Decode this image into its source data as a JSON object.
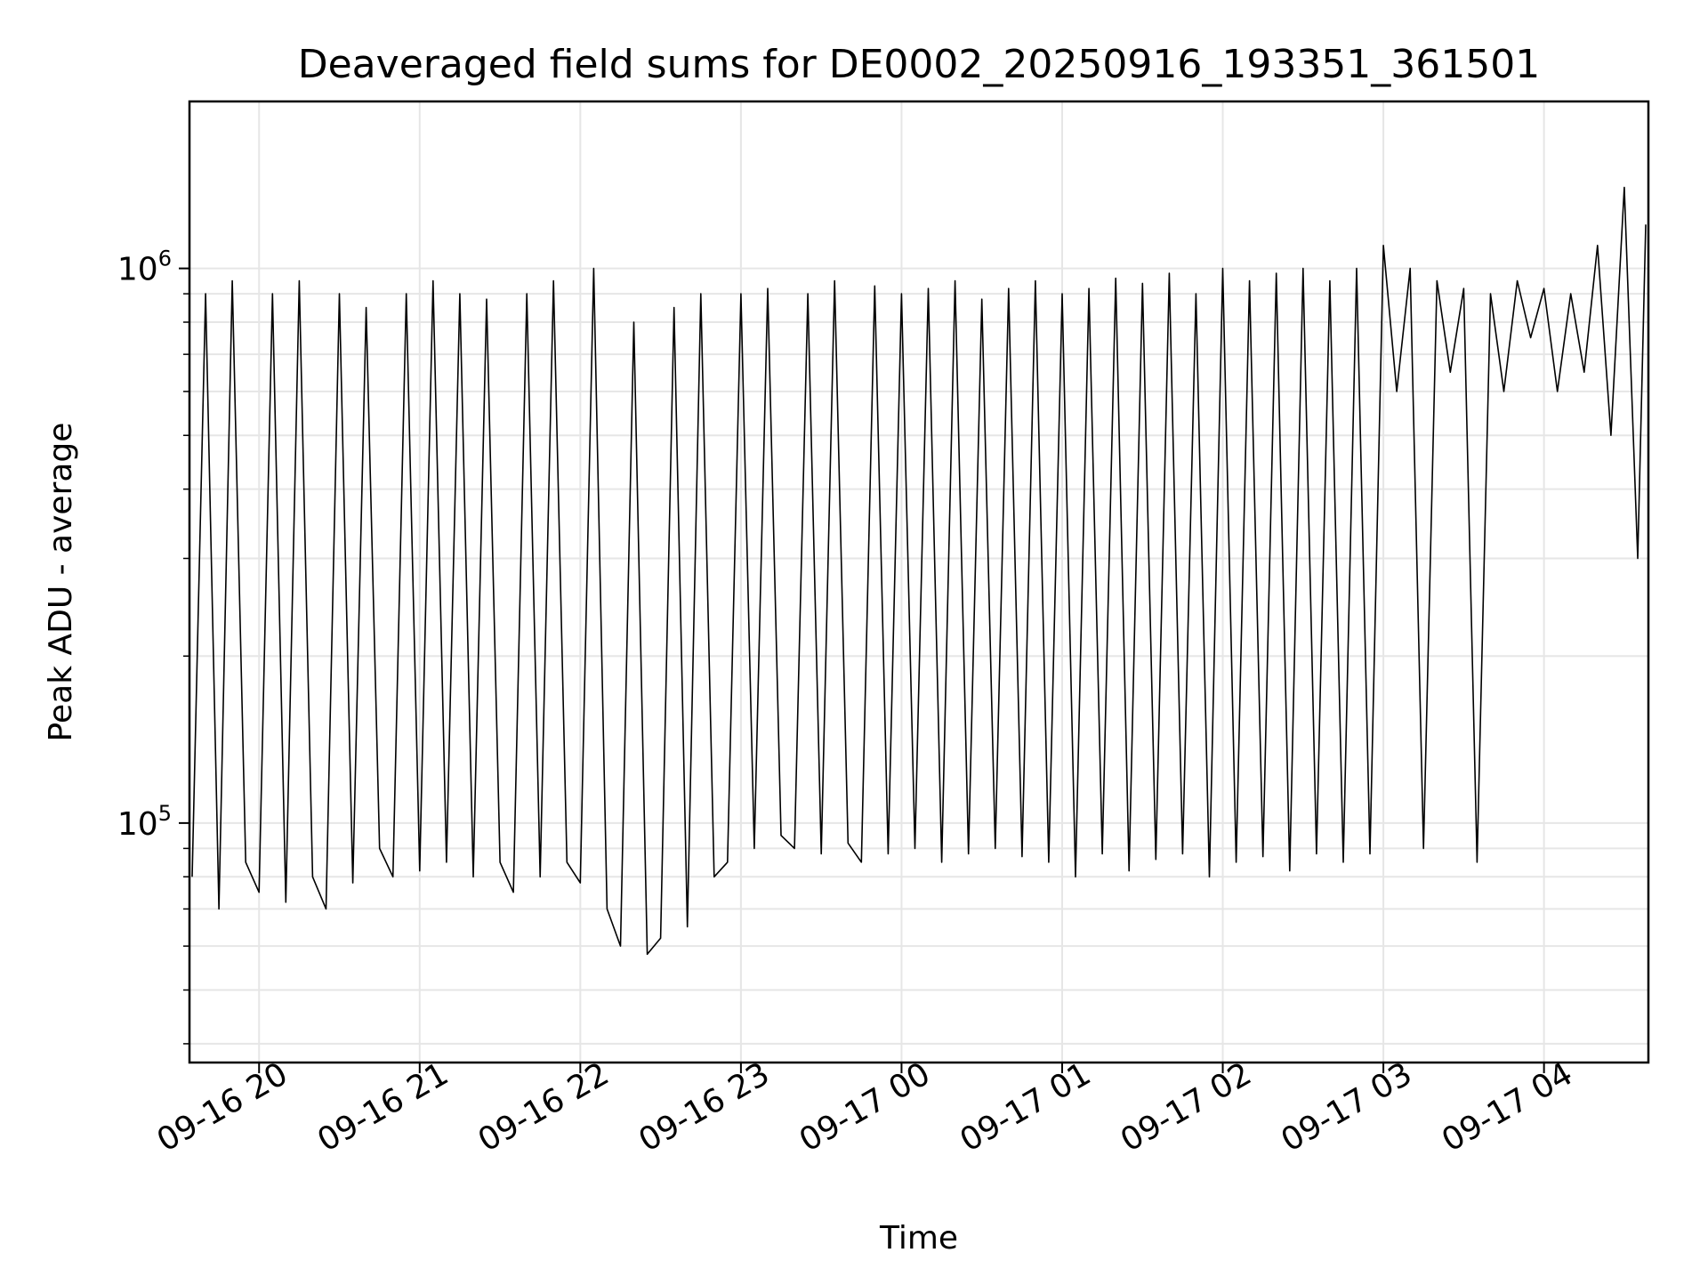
{
  "chart_data": {
    "type": "line",
    "title": "Deaveraged field sums for DE0002_20250916_193351_361501",
    "xlabel": "Time",
    "ylabel": "Peak ADU - average",
    "x_start": "09-16 19:34",
    "x_end": "09-17 04:39",
    "xlim": [
      "09-16 19:34",
      "09-17 04:39"
    ],
    "ylim": [
      37000,
      2000000
    ],
    "yscale": "log",
    "grid": true,
    "x_ticks": [
      "09-16 20",
      "09-16 21",
      "09-16 22",
      "09-16 23",
      "09-17 00",
      "09-17 01",
      "09-17 02",
      "09-17 03",
      "09-17 04"
    ],
    "y_ticks": [
      {
        "base": "10",
        "exp": "5",
        "value": 100000
      },
      {
        "base": "10",
        "exp": "6",
        "value": 1000000
      }
    ],
    "series": [
      {
        "color": "#000000",
        "x": [
          "09-16 19:35",
          "09-16 19:40",
          "09-16 19:45",
          "09-16 19:50",
          "09-16 19:55",
          "09-16 20:00",
          "09-16 20:05",
          "09-16 20:10",
          "09-16 20:15",
          "09-16 20:20",
          "09-16 20:25",
          "09-16 20:30",
          "09-16 20:35",
          "09-16 20:40",
          "09-16 20:45",
          "09-16 20:50",
          "09-16 20:55",
          "09-16 21:00",
          "09-16 21:05",
          "09-16 21:10",
          "09-16 21:15",
          "09-16 21:20",
          "09-16 21:25",
          "09-16 21:30",
          "09-16 21:35",
          "09-16 21:40",
          "09-16 21:45",
          "09-16 21:50",
          "09-16 21:55",
          "09-16 22:00",
          "09-16 22:05",
          "09-16 22:10",
          "09-16 22:15",
          "09-16 22:20",
          "09-16 22:25",
          "09-16 22:30",
          "09-16 22:35",
          "09-16 22:40",
          "09-16 22:45",
          "09-16 22:50",
          "09-16 22:55",
          "09-16 23:00",
          "09-16 23:05",
          "09-16 23:10",
          "09-16 23:15",
          "09-16 23:20",
          "09-16 23:25",
          "09-16 23:30",
          "09-16 23:35",
          "09-16 23:40",
          "09-16 23:45",
          "09-16 23:50",
          "09-16 23:55",
          "09-17 00:00",
          "09-17 00:05",
          "09-17 00:10",
          "09-17 00:15",
          "09-17 00:20",
          "09-17 00:25",
          "09-17 00:30",
          "09-17 00:35",
          "09-17 00:40",
          "09-17 00:45",
          "09-17 00:50",
          "09-17 00:55",
          "09-17 01:00",
          "09-17 01:05",
          "09-17 01:10",
          "09-17 01:15",
          "09-17 01:20",
          "09-17 01:25",
          "09-17 01:30",
          "09-17 01:35",
          "09-17 01:40",
          "09-17 01:45",
          "09-17 01:50",
          "09-17 01:55",
          "09-17 02:00",
          "09-17 02:05",
          "09-17 02:10",
          "09-17 02:15",
          "09-17 02:20",
          "09-17 02:25",
          "09-17 02:30",
          "09-17 02:35",
          "09-17 02:40",
          "09-17 02:45",
          "09-17 02:50",
          "09-17 02:55",
          "09-17 03:00",
          "09-17 03:05",
          "09-17 03:10",
          "09-17 03:15",
          "09-17 03:20",
          "09-17 03:25",
          "09-17 03:30",
          "09-17 03:35",
          "09-17 03:40",
          "09-17 03:45",
          "09-17 03:50",
          "09-17 03:55",
          "09-17 04:00",
          "09-17 04:05",
          "09-17 04:10",
          "09-17 04:15",
          "09-17 04:20",
          "09-17 04:25",
          "09-17 04:30",
          "09-17 04:35",
          "09-17 04:38"
        ],
        "y": [
          80000,
          900000,
          70000,
          950000,
          85000,
          75000,
          900000,
          72000,
          950000,
          80000,
          70000,
          900000,
          78000,
          850000,
          90000,
          80000,
          900000,
          82000,
          950000,
          85000,
          900000,
          80000,
          880000,
          85000,
          75000,
          900000,
          80000,
          950000,
          85000,
          78000,
          1000000,
          70000,
          60000,
          800000,
          58000,
          62000,
          850000,
          65000,
          900000,
          80000,
          85000,
          900000,
          90000,
          920000,
          95000,
          90000,
          900000,
          88000,
          950000,
          92000,
          85000,
          930000,
          88000,
          900000,
          90000,
          920000,
          85000,
          950000,
          88000,
          880000,
          90000,
          920000,
          87000,
          950000,
          85000,
          900000,
          80000,
          920000,
          88000,
          960000,
          82000,
          940000,
          86000,
          980000,
          88000,
          900000,
          80000,
          1000000,
          85000,
          950000,
          87000,
          980000,
          82000,
          1000000,
          88000,
          950000,
          85000,
          1000000,
          88000,
          1100000,
          600000,
          1000000,
          90000,
          950000,
          650000,
          920000,
          85000,
          900000,
          600000,
          950000,
          750000,
          920000,
          600000,
          900000,
          650000,
          1100000,
          500000,
          1400000,
          300000,
          1200000
        ]
      }
    ]
  }
}
